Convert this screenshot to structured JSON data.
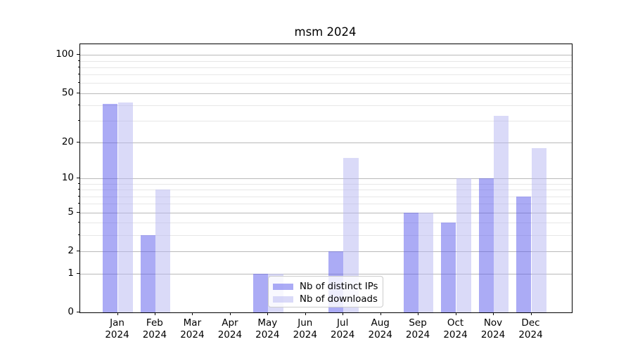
{
  "title": "msm 2024",
  "chart_data": {
    "type": "bar",
    "title": "msm 2024",
    "yscale": "log1p",
    "categories": [
      "Jan 2024",
      "Feb 2024",
      "Mar 2024",
      "Apr 2024",
      "May 2024",
      "Jun 2024",
      "Jul 2024",
      "Aug 2024",
      "Sep 2024",
      "Oct 2024",
      "Nov 2024",
      "Dec 2024"
    ],
    "months": [
      "Jan",
      "Feb",
      "Mar",
      "Apr",
      "May",
      "Jun",
      "Jul",
      "Aug",
      "Sep",
      "Oct",
      "Nov",
      "Dec"
    ],
    "year_line": "2024",
    "series": [
      {
        "name": "Nb of distinct IPs",
        "values": [
          41,
          3,
          0,
          0,
          1,
          0,
          2,
          0,
          5,
          4,
          10,
          7
        ]
      },
      {
        "name": "Nb of downloads",
        "values": [
          42,
          8,
          0,
          0,
          1,
          0,
          15,
          0,
          5,
          10,
          33,
          18
        ]
      }
    ],
    "ylim": [
      0,
      121
    ],
    "yticks_major": [
      0,
      1,
      2,
      5,
      10,
      20,
      50,
      100
    ],
    "yticks_minor": [
      3,
      4,
      6,
      7,
      8,
      9,
      30,
      40,
      60,
      70,
      80,
      90
    ],
    "grid": true,
    "legend_position": "lower center"
  },
  "colors": {
    "ip_bar": "rgba(88,88,235,0.5)",
    "dl_bar": "rgba(182,182,242,0.5)",
    "grid_major": "#b9b9b9",
    "grid_minor": "#e7e7e7",
    "axis": "#000000",
    "text": "#000000",
    "legend_border": "#cccccc"
  }
}
